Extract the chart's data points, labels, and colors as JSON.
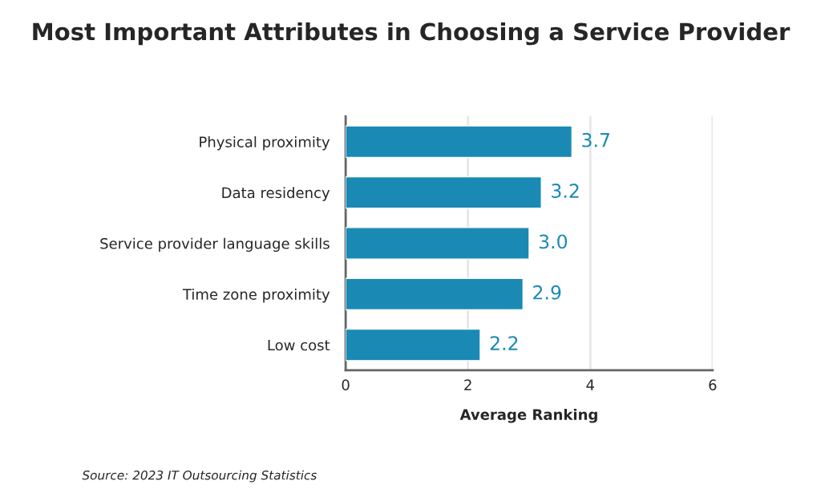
{
  "chart_data": {
    "type": "bar",
    "orientation": "horizontal",
    "title": "Most Important Attributes in Choosing a Service Provider",
    "categories": [
      "Physical proximity",
      "Data residency",
      "Service provider language skills",
      "Time zone proximity",
      "Low cost"
    ],
    "values": [
      3.7,
      3.2,
      3.0,
      2.9,
      2.2
    ],
    "color": "#1a8ab5",
    "xlim": [
      0,
      6
    ],
    "xticks": [
      0,
      2,
      4,
      6
    ],
    "xlabel": "Average Ranking",
    "grid": "x",
    "value_labels": [
      "3.7",
      "3.2",
      "3.0",
      "2.9",
      "2.2"
    ],
    "annotations": [
      "Source: 2023 IT Outsourcing Statistics"
    ]
  }
}
